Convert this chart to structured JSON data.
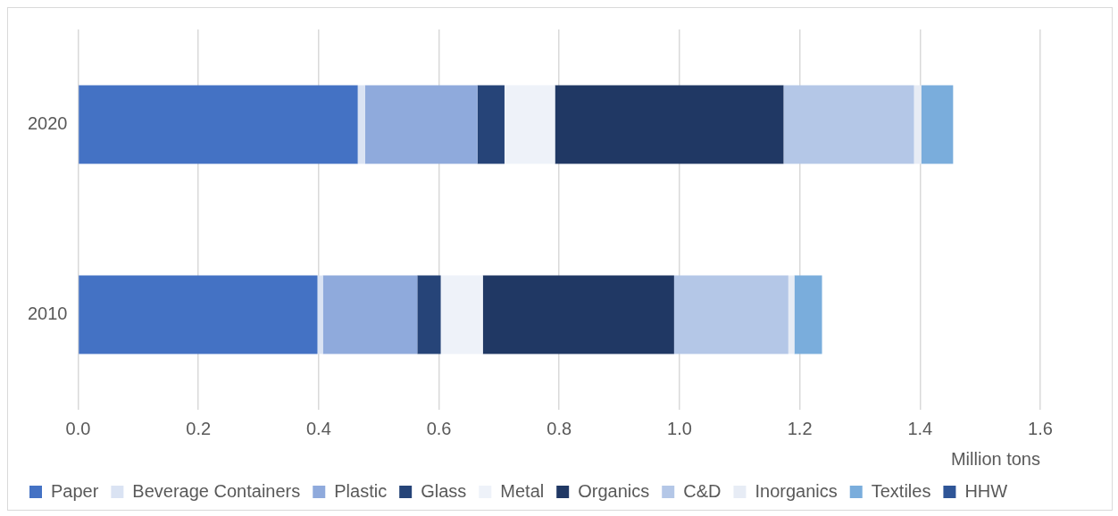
{
  "chart_data": {
    "type": "bar",
    "orientation": "horizontal",
    "stacked": true,
    "categories": [
      "2020",
      "2010"
    ],
    "xlabel": "Million tons",
    "xlim": [
      0,
      1.6
    ],
    "xticks": [
      {
        "value": 0,
        "label": "0.0"
      },
      {
        "value": 0.2,
        "label": "0.2"
      },
      {
        "value": 0.4,
        "label": "0.4"
      },
      {
        "value": 0.6,
        "label": "0.6"
      },
      {
        "value": 0.8,
        "label": "0.8"
      },
      {
        "value": 1,
        "label": "1.0"
      },
      {
        "value": 1.2,
        "label": "1.2"
      },
      {
        "value": 1.4,
        "label": "1.4"
      },
      {
        "value": 1.6,
        "label": "1.6"
      }
    ],
    "grid": "x",
    "legend": "bottom",
    "series": [
      {
        "name": "Paper",
        "color": "#4472c4",
        "values": [
          0.465,
          0.398
        ]
      },
      {
        "name": "Beverage Containers",
        "color": "#dae3f3",
        "values": [
          0.012,
          0.009
        ]
      },
      {
        "name": "Plastic",
        "color": "#8faadc",
        "values": [
          0.187,
          0.157
        ]
      },
      {
        "name": "Glass",
        "color": "#264478",
        "values": [
          0.045,
          0.039
        ]
      },
      {
        "name": "Metal",
        "color": "#eef2f9",
        "values": [
          0.084,
          0.07
        ]
      },
      {
        "name": "Organics",
        "color": "#203864",
        "values": [
          0.38,
          0.318
        ]
      },
      {
        "name": "C&D",
        "color": "#b4c7e7",
        "values": [
          0.217,
          0.19
        ]
      },
      {
        "name": "Inorganics",
        "color": "#e7ecf5",
        "values": [
          0.012,
          0.01
        ]
      },
      {
        "name": "Textiles",
        "color": "#7aaddc",
        "values": [
          0.053,
          0.046
        ]
      },
      {
        "name": "HHW",
        "color": "#2f5597",
        "values": [
          0,
          0
        ]
      }
    ]
  }
}
